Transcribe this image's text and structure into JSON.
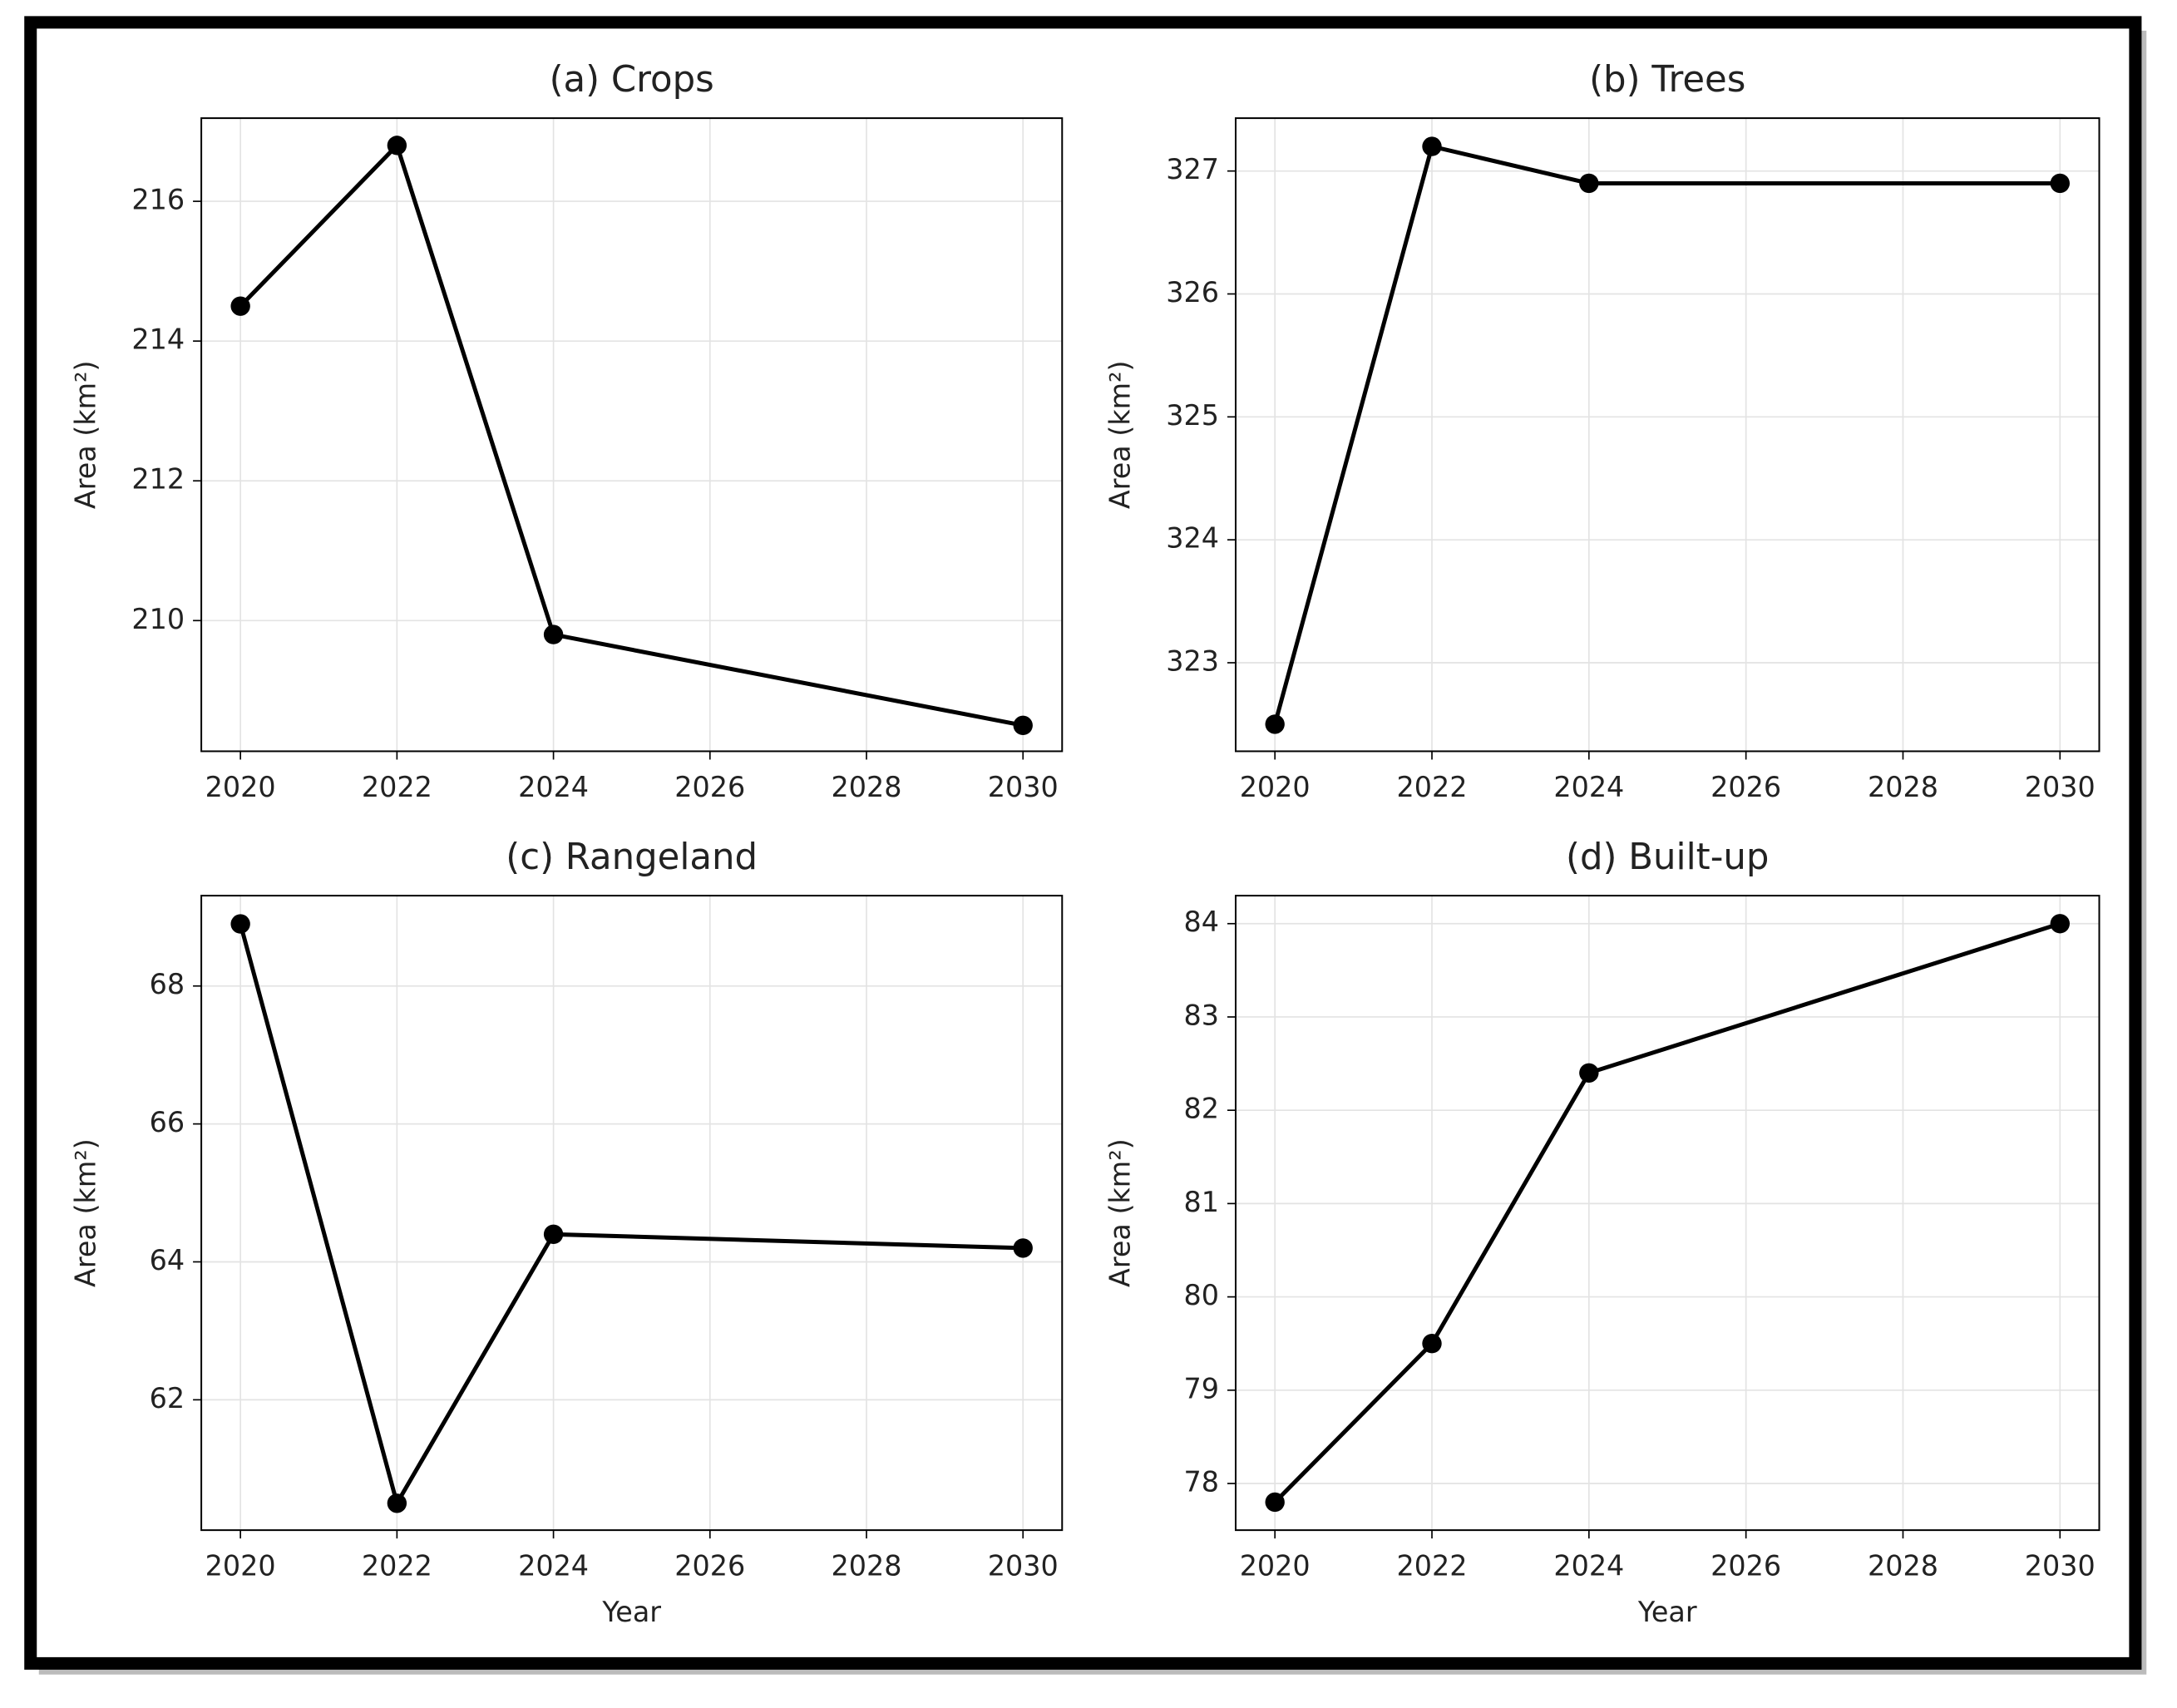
{
  "chart_data": [
    {
      "type": "line",
      "title": "(a) Crops",
      "ylabel": "Area (km²)",
      "x": [
        2020,
        2022,
        2024,
        2030
      ],
      "series": [
        {
          "color": "#000000",
          "values": [
            214.5,
            216.8,
            209.8,
            208.5
          ]
        }
      ],
      "xlim": [
        2019.5,
        2030.5
      ],
      "xticks": [
        2020,
        2022,
        2024,
        2026,
        2028,
        2030
      ],
      "ylim": [
        208.13,
        217.19
      ],
      "yticks": [
        210,
        212,
        214,
        216
      ],
      "grid": true
    },
    {
      "type": "line",
      "title": "(b) Trees",
      "ylabel": "Area (km²)",
      "x": [
        2020,
        2022,
        2024,
        2030
      ],
      "series": [
        {
          "color": "#000000",
          "values": [
            322.5,
            327.2,
            326.9,
            326.9
          ]
        }
      ],
      "xlim": [
        2019.5,
        2030.5
      ],
      "xticks": [
        2020,
        2022,
        2024,
        2026,
        2028,
        2030
      ],
      "ylim": [
        322.28,
        327.43
      ],
      "yticks": [
        323,
        324,
        325,
        326,
        327
      ],
      "grid": true
    },
    {
      "type": "line",
      "title": "(c) Rangeland",
      "ylabel": "Area (km²)",
      "xlabel": "Year",
      "x": [
        2020,
        2022,
        2024,
        2030
      ],
      "series": [
        {
          "color": "#000000",
          "values": [
            68.9,
            60.5,
            64.4,
            64.2
          ]
        }
      ],
      "xlim": [
        2019.5,
        2030.5
      ],
      "xticks": [
        2020,
        2022,
        2024,
        2026,
        2028,
        2030
      ],
      "ylim": [
        60.11,
        69.31
      ],
      "yticks": [
        62,
        64,
        66,
        68
      ],
      "grid": true
    },
    {
      "type": "line",
      "title": "(d) Built-up",
      "ylabel": "Area (km²)",
      "xlabel": "Year",
      "x": [
        2020,
        2022,
        2024,
        2030
      ],
      "series": [
        {
          "color": "#000000",
          "values": [
            77.8,
            79.5,
            82.4,
            84.0
          ]
        }
      ],
      "xlim": [
        2019.5,
        2030.5
      ],
      "xticks": [
        2020,
        2022,
        2024,
        2026,
        2028,
        2030
      ],
      "ylim": [
        77.5,
        84.3
      ],
      "yticks": [
        78,
        79,
        80,
        81,
        82,
        83,
        84
      ],
      "grid": true
    }
  ]
}
